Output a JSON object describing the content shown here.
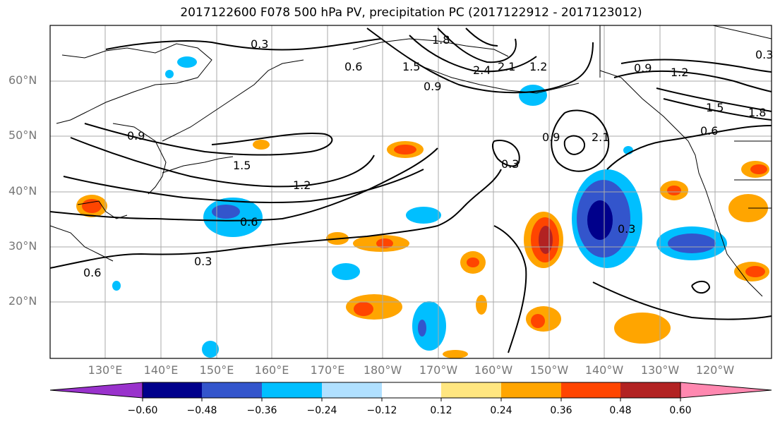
{
  "title": "2017122600 F078 500 hPa PV, precipitation PC (2017122912 - 2017123012)",
  "lat_labels": [
    "60°N",
    "50°N",
    "40°N",
    "30°N",
    "20°N"
  ],
  "lon_labels": [
    "130°E",
    "140°E",
    "150°E",
    "160°E",
    "170°E",
    "180°W",
    "170°W",
    "160°W",
    "150°W",
    "140°W",
    "130°W",
    "120°W"
  ],
  "contour_labels": [
    "0.3",
    "0.6",
    "0.9",
    "1.2",
    "1.5",
    "1.8",
    "2.1",
    "2.4"
  ],
  "colorbar": {
    "ticks": [
      "−0.60",
      "−0.48",
      "−0.36",
      "−0.24",
      "−0.12",
      "0.12",
      "0.24",
      "0.36",
      "0.48",
      "0.60"
    ],
    "colors": [
      "#9932cc",
      "#00008b",
      "#3355cc",
      "#00bfff",
      "#b0e0ff",
      "#ffffff",
      "#ffe680",
      "#ffa500",
      "#ff4500",
      "#b22222",
      "#ff88b0"
    ]
  }
}
